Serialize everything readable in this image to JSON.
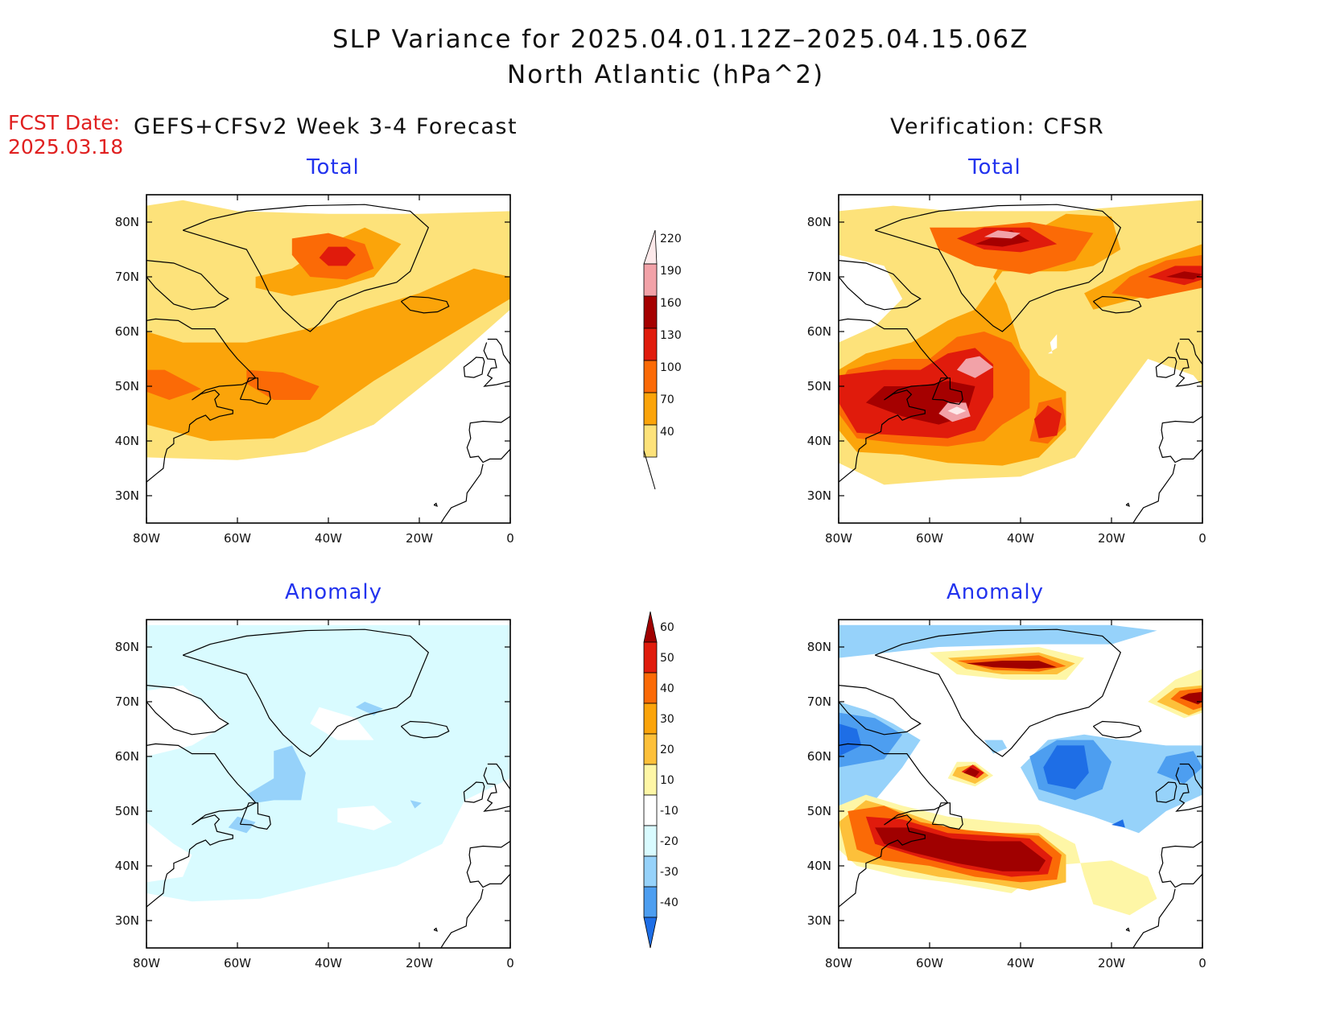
{
  "title_line1": "SLP Variance for 2025.04.01.12Z–2025.04.15.06Z",
  "title_line2": "North Atlantic (hPa^2)",
  "fcst_label": "FCST Date:",
  "fcst_date": "2025.03.18",
  "left_header": "GEFS+CFSv2 Week 3-4 Forecast",
  "right_header": "Verification: CFSR",
  "panels": {
    "fcst_total": {
      "label": "Total"
    },
    "verif_total": {
      "label": "Total"
    },
    "fcst_anom": {
      "label": "Anomaly"
    },
    "verif_anom": {
      "label": "Anomaly"
    }
  },
  "axes": {
    "lat_labels": [
      "80N",
      "70N",
      "60N",
      "50N",
      "40N",
      "30N"
    ],
    "lon_labels": [
      "80W",
      "60W",
      "40W",
      "20W",
      "0"
    ],
    "lat_values": [
      80,
      70,
      60,
      50,
      40,
      30
    ],
    "lon_values": [
      -80,
      -60,
      -40,
      -20,
      0
    ],
    "lat_range": [
      25,
      85
    ],
    "lon_range": [
      -80,
      0
    ]
  },
  "colorbar_total": {
    "levels": [
      "40",
      "70",
      "100",
      "130",
      "160",
      "190",
      "220"
    ],
    "colors": [
      "#fde27a",
      "#fba40a",
      "#fb6a06",
      "#e01b0c",
      "#a50000",
      "#f2a2a8",
      "#fde9ea"
    ]
  },
  "colorbar_anom": {
    "levels": [
      "60",
      "50",
      "40",
      "30",
      "20",
      "10",
      "-10",
      "-20",
      "-30",
      "-40"
    ],
    "colors": [
      "#a00000",
      "#e01b0c",
      "#fb6a06",
      "#fba40a",
      "#fdc03a",
      "#fef6a6",
      "#ffffff",
      "#d9fbff",
      "#96d2fa",
      "#4d9ef0",
      "#1e6ee6"
    ]
  }
}
